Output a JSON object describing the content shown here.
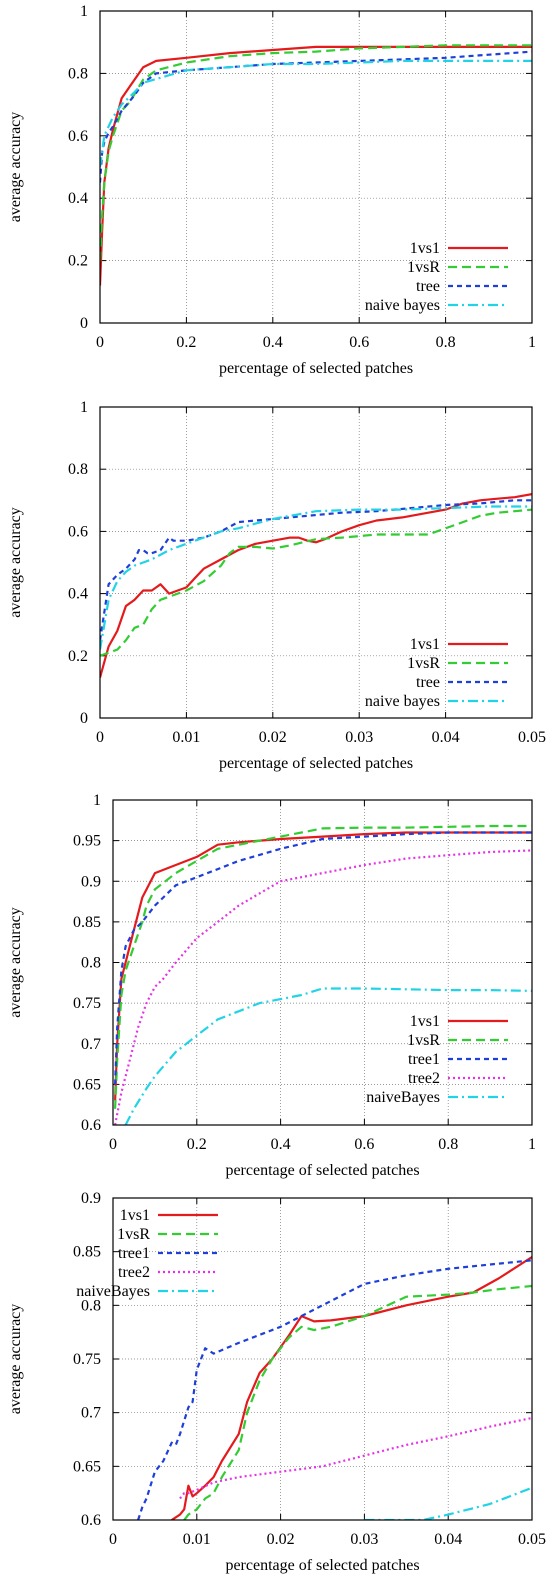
{
  "chart_data": [
    {
      "type": "line",
      "xlabel": "percentage of selected patches",
      "ylabel": "average accuracy",
      "xlim": [
        0,
        1
      ],
      "ylim": [
        0,
        1
      ],
      "xticks": [
        0,
        0.2,
        0.4,
        0.6,
        0.8,
        1
      ],
      "yticks": [
        0,
        0.2,
        0.4,
        0.6,
        0.8,
        1
      ],
      "xtick_labels": [
        "0",
        "0.2",
        "0.4",
        "0.6",
        "0.8",
        "1"
      ],
      "ytick_labels": [
        "0",
        "0.2",
        "0.4",
        "0.6",
        "0.8",
        "1"
      ],
      "grid": true,
      "legend_position": "bottom-right",
      "series": [
        {
          "name": "1vs1",
          "color": "#e41a1c",
          "dash": "solid",
          "x": [
            0,
            0.005,
            0.01,
            0.02,
            0.03,
            0.05,
            0.07,
            0.1,
            0.13,
            0.2,
            0.3,
            0.4,
            0.5,
            0.6,
            0.7,
            0.8,
            0.9,
            1.0
          ],
          "y": [
            0.12,
            0.3,
            0.45,
            0.56,
            0.62,
            0.72,
            0.76,
            0.82,
            0.84,
            0.85,
            0.865,
            0.875,
            0.885,
            0.885,
            0.885,
            0.885,
            0.885,
            0.885
          ]
        },
        {
          "name": "1vsR",
          "color": "#33cc33",
          "dash": "dashed",
          "x": [
            0,
            0.005,
            0.01,
            0.02,
            0.03,
            0.05,
            0.07,
            0.1,
            0.13,
            0.2,
            0.3,
            0.4,
            0.5,
            0.6,
            0.7,
            0.8,
            0.9,
            1.0
          ],
          "y": [
            0.2,
            0.35,
            0.45,
            0.55,
            0.6,
            0.68,
            0.71,
            0.78,
            0.81,
            0.835,
            0.855,
            0.865,
            0.87,
            0.88,
            0.885,
            0.89,
            0.89,
            0.89
          ]
        },
        {
          "name": "tree",
          "color": "#1f3fd9",
          "dash": "dotted",
          "x": [
            0,
            0.005,
            0.01,
            0.02,
            0.03,
            0.05,
            0.08,
            0.1,
            0.13,
            0.2,
            0.3,
            0.4,
            0.5,
            0.6,
            0.7,
            0.8,
            0.9,
            1.0
          ],
          "y": [
            0.45,
            0.55,
            0.58,
            0.61,
            0.63,
            0.68,
            0.73,
            0.77,
            0.8,
            0.81,
            0.82,
            0.83,
            0.835,
            0.84,
            0.845,
            0.85,
            0.86,
            0.87
          ]
        },
        {
          "name": "naive bayes",
          "color": "#22d3e6",
          "dash": "dashdot",
          "x": [
            0,
            0.005,
            0.01,
            0.02,
            0.03,
            0.05,
            0.08,
            0.1,
            0.15,
            0.2,
            0.3,
            0.4,
            0.5,
            0.6,
            0.7,
            0.8,
            0.9,
            1.0
          ],
          "y": [
            0.5,
            0.55,
            0.6,
            0.63,
            0.66,
            0.7,
            0.74,
            0.77,
            0.79,
            0.81,
            0.82,
            0.83,
            0.83,
            0.835,
            0.84,
            0.84,
            0.84,
            0.84
          ]
        }
      ]
    },
    {
      "type": "line",
      "xlabel": "percentage of selected patches",
      "ylabel": "average accuracy",
      "xlim": [
        0,
        0.05
      ],
      "ylim": [
        0,
        1
      ],
      "xticks": [
        0,
        0.01,
        0.02,
        0.03,
        0.04,
        0.05
      ],
      "yticks": [
        0,
        0.2,
        0.4,
        0.6,
        0.8,
        1
      ],
      "xtick_labels": [
        "0",
        "0.01",
        "0.02",
        "0.03",
        "0.04",
        "0.05"
      ],
      "ytick_labels": [
        "0",
        "0.2",
        "0.4",
        "0.6",
        "0.8",
        "1"
      ],
      "grid": true,
      "legend_position": "bottom-right",
      "series": [
        {
          "name": "1vs1",
          "color": "#e41a1c",
          "dash": "solid",
          "x": [
            0,
            0.001,
            0.002,
            0.003,
            0.004,
            0.005,
            0.006,
            0.0065,
            0.007,
            0.008,
            0.009,
            0.01,
            0.011,
            0.012,
            0.014,
            0.016,
            0.018,
            0.02,
            0.022,
            0.023,
            0.024,
            0.025,
            0.026,
            0.028,
            0.03,
            0.032,
            0.035,
            0.038,
            0.04,
            0.042,
            0.044,
            0.046,
            0.048,
            0.05
          ],
          "y": [
            0.13,
            0.23,
            0.28,
            0.36,
            0.38,
            0.41,
            0.41,
            0.42,
            0.43,
            0.4,
            0.41,
            0.42,
            0.45,
            0.48,
            0.51,
            0.54,
            0.56,
            0.57,
            0.58,
            0.58,
            0.57,
            0.565,
            0.575,
            0.6,
            0.62,
            0.635,
            0.645,
            0.66,
            0.67,
            0.69,
            0.7,
            0.705,
            0.71,
            0.72
          ]
        },
        {
          "name": "1vsR",
          "color": "#33cc33",
          "dash": "dashed",
          "x": [
            0,
            0.002,
            0.003,
            0.004,
            0.005,
            0.006,
            0.007,
            0.008,
            0.009,
            0.01,
            0.012,
            0.014,
            0.015,
            0.016,
            0.018,
            0.02,
            0.022,
            0.025,
            0.028,
            0.03,
            0.032,
            0.035,
            0.038,
            0.04,
            0.042,
            0.044,
            0.046,
            0.048,
            0.05
          ],
          "y": [
            0.2,
            0.22,
            0.25,
            0.29,
            0.3,
            0.35,
            0.38,
            0.39,
            0.4,
            0.41,
            0.44,
            0.49,
            0.53,
            0.55,
            0.55,
            0.545,
            0.555,
            0.575,
            0.58,
            0.585,
            0.59,
            0.59,
            0.59,
            0.61,
            0.63,
            0.65,
            0.66,
            0.665,
            0.67
          ]
        },
        {
          "name": "tree",
          "color": "#1f3fd9",
          "dash": "dotted",
          "x": [
            0,
            0.001,
            0.002,
            0.003,
            0.004,
            0.0045,
            0.005,
            0.0055,
            0.006,
            0.007,
            0.008,
            0.0085,
            0.009,
            0.01,
            0.012,
            0.014,
            0.016,
            0.018,
            0.02,
            0.024,
            0.028,
            0.032,
            0.036,
            0.04,
            0.044,
            0.048,
            0.05
          ],
          "y": [
            0.25,
            0.43,
            0.46,
            0.48,
            0.51,
            0.54,
            0.54,
            0.53,
            0.53,
            0.54,
            0.58,
            0.57,
            0.57,
            0.57,
            0.58,
            0.6,
            0.63,
            0.635,
            0.64,
            0.65,
            0.66,
            0.665,
            0.675,
            0.685,
            0.69,
            0.7,
            0.7
          ]
        },
        {
          "name": "naive bayes",
          "color": "#22d3e6",
          "dash": "dashdot",
          "x": [
            0,
            0.001,
            0.002,
            0.003,
            0.004,
            0.005,
            0.006,
            0.008,
            0.01,
            0.012,
            0.014,
            0.016,
            0.018,
            0.02,
            0.022,
            0.025,
            0.03,
            0.035,
            0.04,
            0.045,
            0.05
          ],
          "y": [
            0.22,
            0.38,
            0.44,
            0.47,
            0.49,
            0.5,
            0.51,
            0.54,
            0.56,
            0.58,
            0.6,
            0.61,
            0.625,
            0.64,
            0.65,
            0.665,
            0.67,
            0.67,
            0.675,
            0.68,
            0.68
          ]
        }
      ]
    },
    {
      "type": "line",
      "xlabel": "percentage of selected patches",
      "ylabel": "average accuracy",
      "xlim": [
        0,
        1
      ],
      "ylim": [
        0.6,
        1
      ],
      "xticks": [
        0,
        0.2,
        0.4,
        0.6,
        0.8,
        1
      ],
      "yticks": [
        0.6,
        0.65,
        0.7,
        0.75,
        0.8,
        0.85,
        0.9,
        0.95,
        1
      ],
      "xtick_labels": [
        "0",
        "0.2",
        "0.4",
        "0.6",
        "0.8",
        "1"
      ],
      "ytick_labels": [
        "0.6",
        "0.65",
        "0.7",
        "0.75",
        "0.8",
        "0.85",
        "0.9",
        "0.95",
        "1"
      ],
      "grid": true,
      "legend_position": "bottom-right",
      "series": [
        {
          "name": "1vs1",
          "color": "#e41a1c",
          "dash": "solid",
          "x": [
            0.005,
            0.01,
            0.02,
            0.03,
            0.05,
            0.06,
            0.07,
            0.08,
            0.1,
            0.15,
            0.2,
            0.25,
            0.3,
            0.4,
            0.5,
            0.6,
            0.7,
            0.8,
            0.9,
            1.0
          ],
          "y": [
            0.63,
            0.7,
            0.78,
            0.8,
            0.84,
            0.86,
            0.88,
            0.89,
            0.91,
            0.92,
            0.93,
            0.945,
            0.948,
            0.952,
            0.955,
            0.958,
            0.96,
            0.96,
            0.96,
            0.96
          ]
        },
        {
          "name": "1vsR",
          "color": "#33cc33",
          "dash": "dashed",
          "x": [
            0.005,
            0.01,
            0.02,
            0.03,
            0.05,
            0.06,
            0.07,
            0.08,
            0.1,
            0.15,
            0.2,
            0.25,
            0.3,
            0.4,
            0.5,
            0.6,
            0.7,
            0.8,
            0.9,
            1.0
          ],
          "y": [
            0.62,
            0.68,
            0.76,
            0.79,
            0.82,
            0.835,
            0.85,
            0.87,
            0.89,
            0.91,
            0.925,
            0.94,
            0.945,
            0.955,
            0.965,
            0.966,
            0.966,
            0.967,
            0.968,
            0.968
          ]
        },
        {
          "name": "tree1",
          "color": "#1f3fd9",
          "dash": "dotted",
          "x": [
            0.005,
            0.01,
            0.02,
            0.03,
            0.05,
            0.07,
            0.1,
            0.15,
            0.2,
            0.25,
            0.3,
            0.4,
            0.5,
            0.6,
            0.7,
            0.8,
            0.9,
            1.0
          ],
          "y": [
            0.65,
            0.72,
            0.79,
            0.82,
            0.84,
            0.85,
            0.87,
            0.895,
            0.905,
            0.915,
            0.925,
            0.94,
            0.952,
            0.955,
            0.958,
            0.96,
            0.96,
            0.96
          ]
        },
        {
          "name": "tree2",
          "color": "#e632e6",
          "dash": "dotted-fine",
          "x": [
            0.005,
            0.02,
            0.04,
            0.06,
            0.08,
            0.1,
            0.12,
            0.15,
            0.2,
            0.25,
            0.3,
            0.35,
            0.4,
            0.5,
            0.6,
            0.7,
            0.8,
            0.9,
            1.0
          ],
          "y": [
            0.6,
            0.64,
            0.68,
            0.72,
            0.75,
            0.77,
            0.78,
            0.8,
            0.83,
            0.85,
            0.87,
            0.885,
            0.9,
            0.91,
            0.92,
            0.928,
            0.932,
            0.936,
            0.938
          ]
        },
        {
          "name": "naiveBayes",
          "color": "#22d3e6",
          "dash": "dashdot",
          "x": [
            0.03,
            0.05,
            0.08,
            0.1,
            0.15,
            0.2,
            0.25,
            0.3,
            0.35,
            0.4,
            0.45,
            0.5,
            0.6,
            0.7,
            0.8,
            0.9,
            1.0
          ],
          "y": [
            0.6,
            0.62,
            0.645,
            0.66,
            0.69,
            0.71,
            0.73,
            0.74,
            0.75,
            0.755,
            0.76,
            0.768,
            0.768,
            0.767,
            0.766,
            0.766,
            0.765
          ]
        }
      ]
    },
    {
      "type": "line",
      "xlabel": "percentage of selected patches",
      "ylabel": "average accuracy",
      "xlim": [
        0,
        0.05
      ],
      "ylim": [
        0.6,
        0.9
      ],
      "xticks": [
        0,
        0.01,
        0.02,
        0.03,
        0.04,
        0.05
      ],
      "yticks": [
        0.6,
        0.65,
        0.7,
        0.75,
        0.8,
        0.85,
        0.9
      ],
      "xtick_labels": [
        "0",
        "0.01",
        "0.02",
        "0.03",
        "0.04",
        "0.05"
      ],
      "ytick_labels": [
        "0.6",
        "0.65",
        "0.7",
        "0.75",
        "0.8",
        "0.85",
        "0.9"
      ],
      "grid": true,
      "legend_position": "top-left",
      "series": [
        {
          "name": "1vs1",
          "color": "#e41a1c",
          "dash": "solid",
          "x": [
            0.007,
            0.008,
            0.0085,
            0.009,
            0.0095,
            0.01,
            0.011,
            0.012,
            0.013,
            0.015,
            0.016,
            0.0175,
            0.019,
            0.021,
            0.0225,
            0.024,
            0.026,
            0.03,
            0.035,
            0.04,
            0.043,
            0.046,
            0.05
          ],
          "y": [
            0.6,
            0.605,
            0.61,
            0.632,
            0.622,
            0.625,
            0.632,
            0.64,
            0.655,
            0.68,
            0.71,
            0.737,
            0.75,
            0.772,
            0.79,
            0.785,
            0.786,
            0.79,
            0.8,
            0.808,
            0.812,
            0.825,
            0.845
          ]
        },
        {
          "name": "1vsR",
          "color": "#33cc33",
          "dash": "dashed",
          "x": [
            0.0085,
            0.009,
            0.01,
            0.011,
            0.012,
            0.013,
            0.015,
            0.016,
            0.0175,
            0.019,
            0.021,
            0.0225,
            0.024,
            0.026,
            0.03,
            0.035,
            0.04,
            0.043,
            0.046,
            0.05
          ],
          "y": [
            0.6,
            0.605,
            0.61,
            0.62,
            0.625,
            0.64,
            0.665,
            0.7,
            0.73,
            0.75,
            0.77,
            0.78,
            0.777,
            0.78,
            0.79,
            0.808,
            0.81,
            0.812,
            0.815,
            0.818
          ]
        },
        {
          "name": "tree1",
          "color": "#1f3fd9",
          "dash": "dotted",
          "x": [
            0.003,
            0.0035,
            0.004,
            0.005,
            0.006,
            0.007,
            0.0075,
            0.008,
            0.009,
            0.0095,
            0.01,
            0.011,
            0.012,
            0.015,
            0.02,
            0.025,
            0.03,
            0.035,
            0.04,
            0.045,
            0.05
          ],
          "y": [
            0.6,
            0.612,
            0.62,
            0.645,
            0.655,
            0.672,
            0.67,
            0.68,
            0.705,
            0.71,
            0.74,
            0.76,
            0.755,
            0.765,
            0.78,
            0.8,
            0.82,
            0.828,
            0.834,
            0.838,
            0.842
          ]
        },
        {
          "name": "tree2",
          "color": "#e632e6",
          "dash": "dotted-fine",
          "x": [
            0.008,
            0.0085,
            0.009,
            0.01,
            0.012,
            0.015,
            0.02,
            0.025,
            0.03,
            0.035,
            0.04,
            0.045,
            0.05
          ],
          "y": [
            0.62,
            0.625,
            0.625,
            0.628,
            0.635,
            0.64,
            0.645,
            0.65,
            0.66,
            0.67,
            0.678,
            0.687,
            0.695
          ]
        },
        {
          "name": "naiveBayes",
          "color": "#22d3e6",
          "dash": "dashdot",
          "x": [
            0.03,
            0.035,
            0.037,
            0.04,
            0.045,
            0.05
          ],
          "y": [
            0.6,
            0.6,
            0.6,
            0.605,
            0.615,
            0.63
          ]
        }
      ]
    }
  ]
}
